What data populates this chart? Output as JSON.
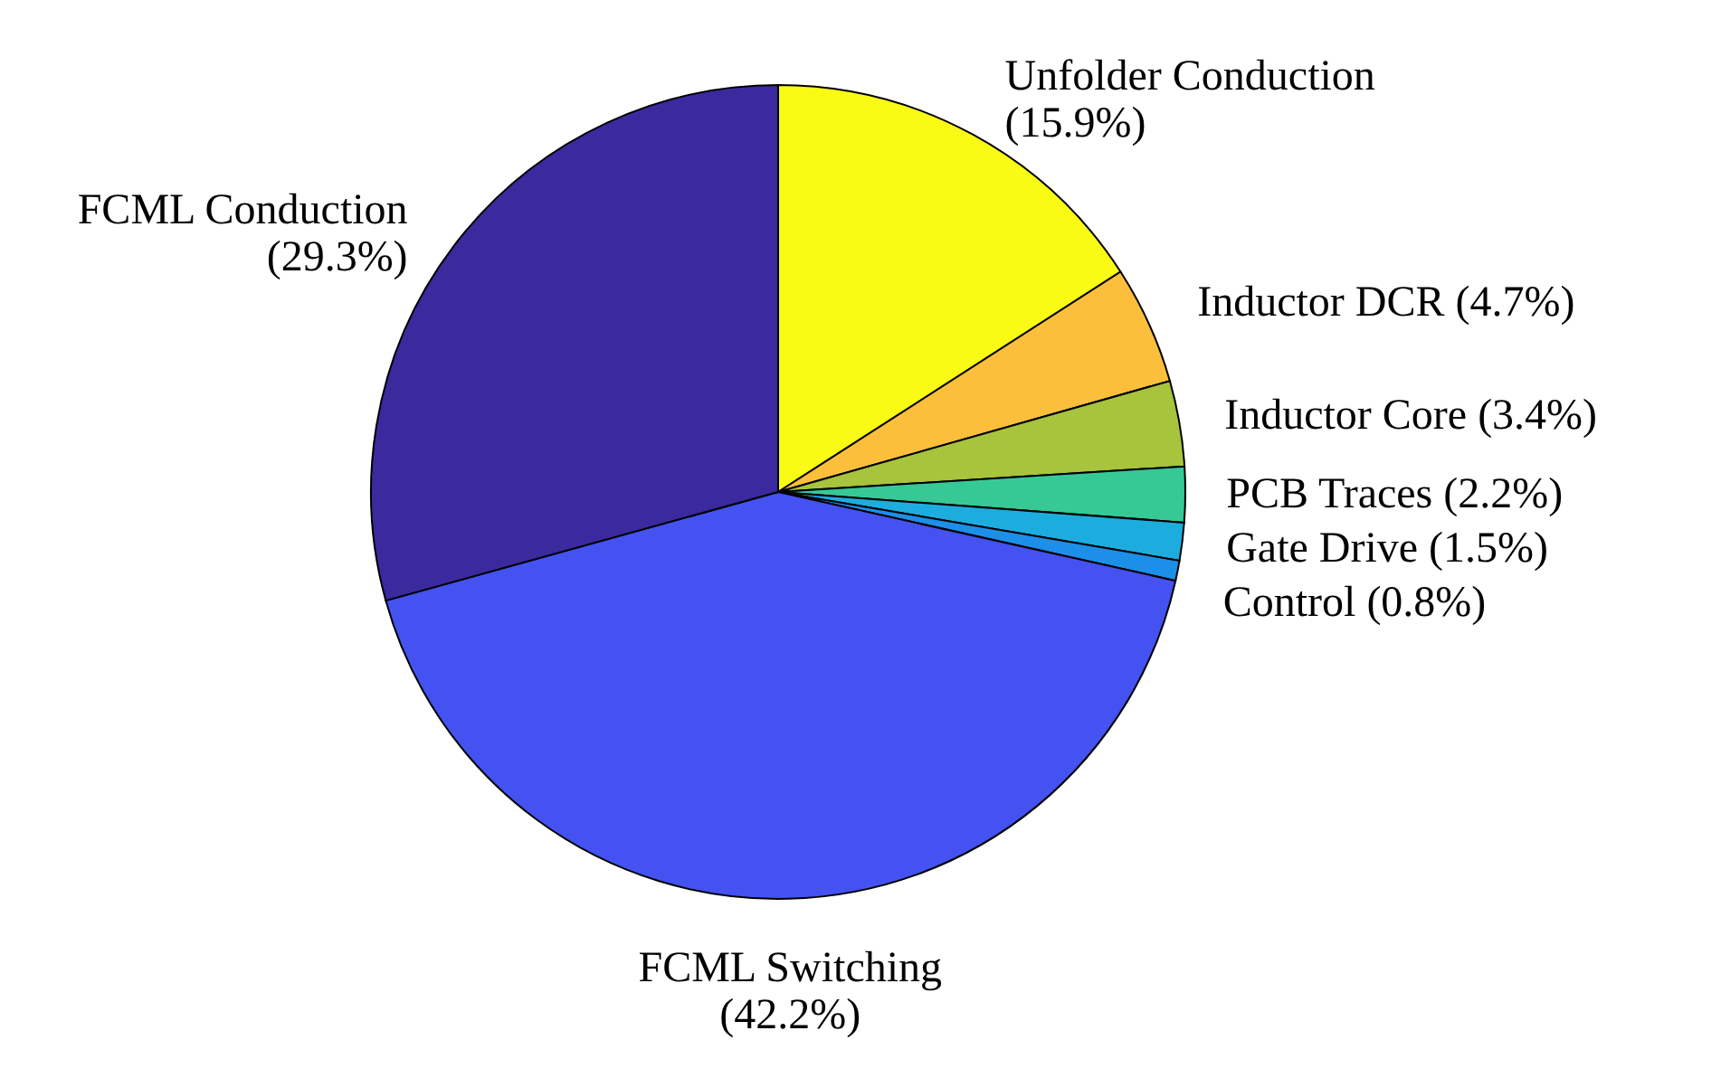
{
  "chart_data": {
    "type": "pie",
    "categories": [
      "Unfolder Conduction",
      "Inductor DCR",
      "Inductor Core",
      "PCB Traces",
      "Gate Drive",
      "Control",
      "FCML Switching",
      "FCML Conduction"
    ],
    "values": [
      15.9,
      4.7,
      3.4,
      2.2,
      1.5,
      0.8,
      42.2,
      29.3
    ],
    "value_labels": [
      "(15.9%)",
      "(4.7%)",
      "(3.4%)",
      "(2.2%)",
      "(1.5%)",
      "(0.8%)",
      "(42.2%)",
      "(29.3%)"
    ],
    "colors": [
      "#f9fb15",
      "#fcbf3c",
      "#a8c33c",
      "#36c996",
      "#1cadde",
      "#1c8fe8",
      "#4352f0",
      "#3a2a9e"
    ]
  }
}
